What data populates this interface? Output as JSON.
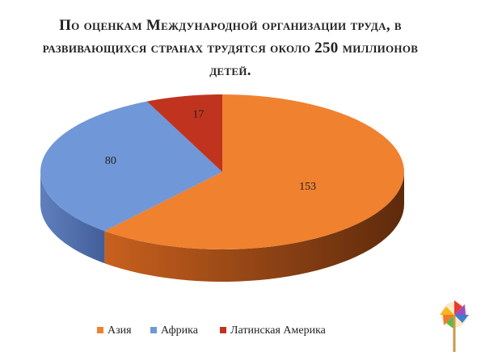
{
  "chart_data": {
    "type": "pie",
    "title": "По оценкам Международной организации труда, в развивающихся странах трудятся около 250 миллионов детей.",
    "categories": [
      "Азия",
      "Африка",
      "Латинская Америка"
    ],
    "values": [
      153,
      80,
      17
    ],
    "colors": [
      "#f0812f",
      "#7097d8",
      "#c0341f"
    ]
  }
}
